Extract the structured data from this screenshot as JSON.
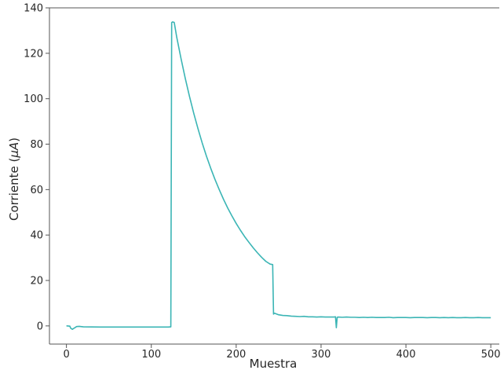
{
  "chart_data": {
    "type": "line",
    "title": "",
    "xlabel": "Muestra",
    "ylabel_prefix": "Corriente (",
    "ylabel_mu": "μ",
    "ylabel_unit": "A",
    "ylabel_suffix": ")",
    "xlim": [
      -20,
      510
    ],
    "ylim": [
      -8,
      140
    ],
    "xticks": [
      0,
      100,
      200,
      300,
      400,
      500
    ],
    "yticks": [
      0,
      20,
      40,
      60,
      80,
      100,
      120,
      140
    ],
    "grid": false,
    "line_color": "#3bb5b5",
    "series": [
      {
        "x": [
          0,
          4,
          5,
          7,
          9,
          12,
          15,
          20,
          40,
          60,
          80,
          100,
          110,
          120,
          123,
          124,
          125,
          127,
          130,
          135,
          140,
          145,
          150,
          155,
          160,
          165,
          170,
          175,
          180,
          185,
          190,
          195,
          200,
          205,
          210,
          215,
          220,
          225,
          230,
          235,
          240,
          243,
          244,
          245,
          250,
          255,
          260,
          265,
          270,
          275,
          280,
          285,
          290,
          295,
          300,
          305,
          310,
          315,
          317,
          318,
          319,
          320,
          325,
          330,
          335,
          340,
          345,
          350,
          355,
          360,
          365,
          370,
          375,
          380,
          385,
          390,
          395,
          400,
          405,
          410,
          415,
          420,
          425,
          430,
          435,
          440,
          445,
          450,
          455,
          460,
          465,
          470,
          475,
          480,
          485,
          490,
          495,
          500
        ],
        "y": [
          0,
          -0.1,
          -1,
          -1.5,
          -1.0,
          -0.3,
          -0.2,
          -0.4,
          -0.5,
          -0.5,
          -0.5,
          -0.5,
          -0.5,
          -0.5,
          -0.4,
          133.5,
          133.8,
          133.6,
          127,
          117.7,
          109,
          101,
          93.6,
          86.8,
          80.5,
          74.7,
          69.4,
          64.5,
          60,
          55.8,
          51.9,
          48.4,
          45.1,
          42.1,
          39.3,
          36.8,
          34.4,
          32.2,
          30.2,
          28.4,
          27.2,
          27.0,
          5.2,
          5.6,
          4.9,
          4.6,
          4.5,
          4.3,
          4.2,
          4.1,
          4.2,
          4.0,
          4.0,
          3.9,
          4.0,
          3.9,
          3.9,
          3.9,
          4.0,
          -0.8,
          3.8,
          3.9,
          3.8,
          3.9,
          3.8,
          3.8,
          3.7,
          3.8,
          3.7,
          3.8,
          3.7,
          3.7,
          3.7,
          3.8,
          3.6,
          3.7,
          3.7,
          3.7,
          3.6,
          3.7,
          3.7,
          3.7,
          3.6,
          3.7,
          3.7,
          3.6,
          3.7,
          3.6,
          3.7,
          3.6,
          3.6,
          3.7,
          3.6,
          3.6,
          3.7,
          3.6,
          3.6,
          3.6
        ]
      }
    ]
  }
}
